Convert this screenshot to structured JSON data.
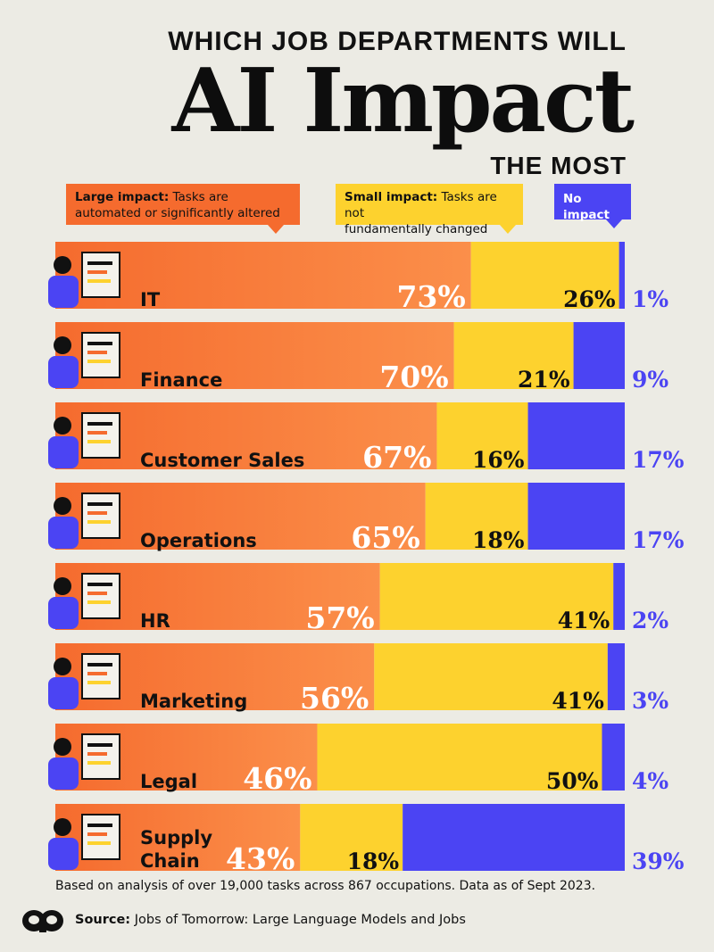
{
  "title": {
    "top": "WHICH JOB DEPARTMENTS WILL",
    "main": "AI Impact",
    "bottom": "THE MOST"
  },
  "legend": {
    "large_label": "Large impact:",
    "large_desc_1": " Tasks are",
    "large_desc_2": "automated or significantly altered",
    "small_label": "Small impact:",
    "small_desc_1": " Tasks are not",
    "small_desc_2": "fundamentally changed",
    "none_label": "No impact"
  },
  "colors": {
    "large": "#f56b2e",
    "large_light": "#fb8f4a",
    "small": "#fdd22e",
    "none": "#4b44f3",
    "background": "#ecebe4"
  },
  "chart_data": {
    "type": "bar",
    "stacked": true,
    "orientation": "horizontal",
    "categories": [
      "IT",
      "Finance",
      "Customer Sales",
      "Operations",
      "HR",
      "Marketing",
      "Legal",
      "Supply Chain"
    ],
    "series": [
      {
        "name": "Large impact",
        "values": [
          73,
          70,
          67,
          65,
          57,
          56,
          46,
          43
        ]
      },
      {
        "name": "Small impact",
        "values": [
          26,
          21,
          16,
          18,
          41,
          41,
          50,
          18
        ]
      },
      {
        "name": "No impact",
        "values": [
          1,
          9,
          17,
          17,
          2,
          3,
          4,
          39
        ]
      }
    ],
    "value_labels": {
      "large": [
        "73%",
        "70%",
        "67%",
        "65%",
        "57%",
        "56%",
        "46%",
        "43%"
      ],
      "small": [
        "26%",
        "21%",
        "16%",
        "18%",
        "41%",
        "41%",
        "50%",
        "18%"
      ],
      "none": [
        "1%",
        "9%",
        "17%",
        "17%",
        "2%",
        "3%",
        "4%",
        "39%"
      ]
    },
    "unit": "%",
    "xlim": [
      0,
      100
    ],
    "legend_placement": "top"
  },
  "footnote": "Based on analysis of over 19,000 tasks across 867 occupations. Data as of Sept 2023.",
  "source": {
    "label": "Source:",
    "text": " Jobs of Tomorrow: Large Language Models and Jobs"
  },
  "icons": [
    "it-worker-illustration",
    "finance-illustration",
    "customer-sales-illustration",
    "operations-illustration",
    "hr-illustration",
    "marketing-illustration",
    "legal-illustration",
    "supply-chain-illustration",
    "publisher-logo-icon"
  ]
}
